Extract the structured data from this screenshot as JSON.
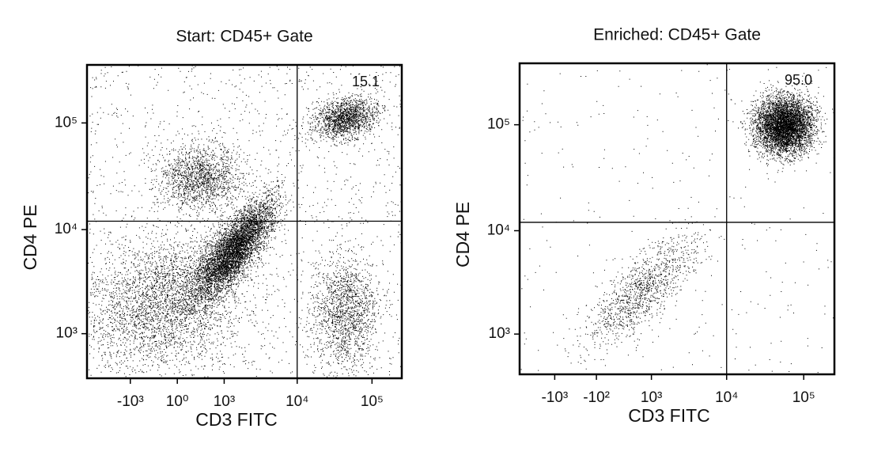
{
  "chart_data": [
    {
      "type": "scatter",
      "title": "Start: CD45+ Gate",
      "x_label": "CD3 FITC",
      "y_label": "CD4 PE",
      "scale": "biexponential",
      "xlim": [
        -4000,
        250000
      ],
      "ylim": [
        250,
        350000
      ],
      "xticks": [
        {
          "value": -1000,
          "label": "-10³"
        },
        {
          "value": 1,
          "label": "10⁰"
        },
        {
          "value": 1000,
          "label": "10³"
        },
        {
          "value": 10000,
          "label": "10⁴"
        },
        {
          "value": 100000,
          "label": "10⁵"
        }
      ],
      "yticks": [
        {
          "value": 1000,
          "label": "10³"
        },
        {
          "value": 10000,
          "label": "10⁴"
        },
        {
          "value": 100000,
          "label": "10⁵"
        }
      ],
      "quadrant_gate": {
        "x": 10000,
        "y": 12000
      },
      "values": [
        15.1
      ]
    },
    {
      "type": "scatter",
      "title": "Enriched: CD45+ Gate",
      "x_label": "CD3 FITC",
      "y_label": "CD4 PE",
      "scale": "biexponential",
      "xlim": [
        -3000,
        250000
      ],
      "ylim": [
        300,
        380000
      ],
      "xticks": [
        {
          "value": -1000,
          "label": "-10³"
        },
        {
          "value": -100,
          "label": "-10²"
        },
        {
          "value": 1000,
          "label": "10³"
        },
        {
          "value": 10000,
          "label": "10⁴"
        },
        {
          "value": 100000,
          "label": "10⁵"
        }
      ],
      "yticks": [
        {
          "value": 1000,
          "label": "10³"
        },
        {
          "value": 10000,
          "label": "10⁴"
        },
        {
          "value": 100000,
          "label": "10⁵"
        }
      ],
      "quadrant_gate": {
        "x": 10000,
        "y": 12000
      },
      "values": [
        95.0
      ],
      "value_labels": [
        "95.0"
      ]
    }
  ]
}
